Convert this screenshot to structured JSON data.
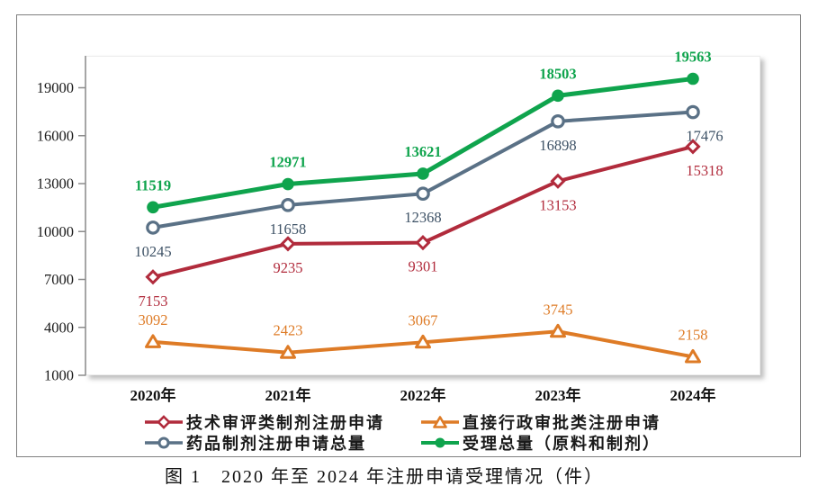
{
  "caption": "图 1　2020 年至 2024 年注册申请受理情况（件）",
  "chart_data": {
    "type": "line",
    "title": "",
    "xlabel": "",
    "ylabel": "",
    "categories": [
      "2020年",
      "2021年",
      "2022年",
      "2023年",
      "2024年"
    ],
    "y_ticks": [
      1000,
      4000,
      7000,
      10000,
      13000,
      16000,
      19000
    ],
    "ylim": [
      1000,
      21000
    ],
    "grid": false,
    "legend_position": "bottom",
    "series": [
      {
        "name": "技术审评类制剂注册申请",
        "color": "#B12B3C",
        "marker": "diamond-open",
        "label_position": "below",
        "values": [
          7153,
          9235,
          9301,
          13153,
          15318
        ]
      },
      {
        "name": "直接行政审批类注册申请",
        "color": "#DE7B26",
        "marker": "triangle-open",
        "label_position": "above",
        "values": [
          3092,
          2423,
          3067,
          3745,
          2158
        ]
      },
      {
        "name": "药品制剂注册申请总量",
        "color": "#5A7186",
        "label_color": "#3E5266",
        "marker": "circle-open",
        "label_position": "below",
        "values": [
          10245,
          11658,
          12368,
          16898,
          17476
        ]
      },
      {
        "name": "受理总量（原料和制剂）",
        "color": "#0FA44D",
        "marker": "circle-filled",
        "label_position": "above",
        "label_bold": true,
        "values": [
          11519,
          12971,
          13621,
          18503,
          19563
        ]
      }
    ]
  }
}
